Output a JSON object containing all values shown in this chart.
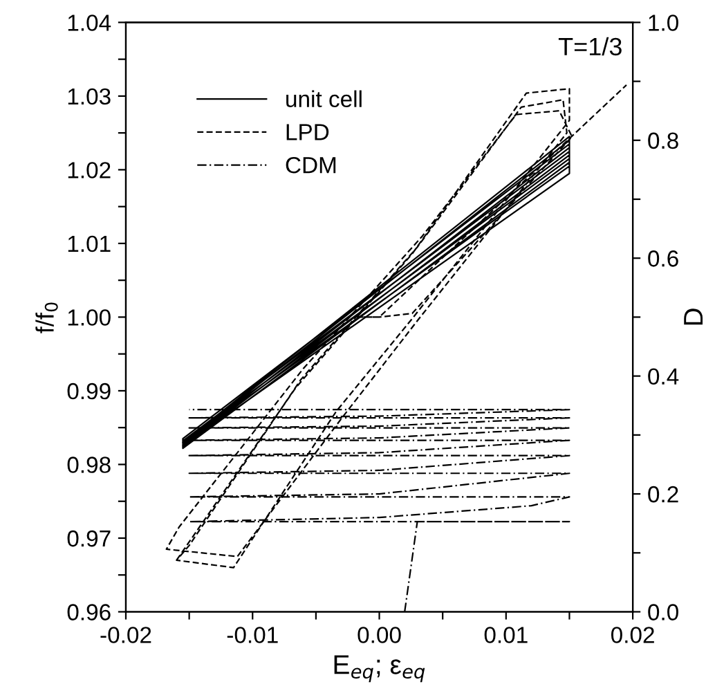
{
  "chart_data": {
    "type": "line",
    "xlabel": "E$_{eq}$; ε$_{eq}$",
    "ylabel": "f/f$_{0}$",
    "y2label": "D",
    "annotations": [
      "T=1/3"
    ],
    "legend": "top left",
    "grid": false,
    "marker": "none",
    "xlim": [
      -0.02,
      0.02
    ],
    "ylim": [
      0.96,
      1.04
    ],
    "y2lim": [
      0.0,
      1.0
    ],
    "xticks": [
      {
        "value": -0.02,
        "label": "-0.02"
      },
      {
        "value": -0.015,
        "label": null
      },
      {
        "value": -0.01,
        "label": "-0.01"
      },
      {
        "value": -0.005,
        "label": null
      },
      {
        "value": 0.0,
        "label": "0.00"
      },
      {
        "value": 0.005,
        "label": null
      },
      {
        "value": 0.01,
        "label": "0.01"
      },
      {
        "value": 0.015,
        "label": null
      },
      {
        "value": 0.02,
        "label": "0.02"
      }
    ],
    "yticks": [
      {
        "value": 0.96,
        "label": "0.96"
      },
      {
        "value": 0.965,
        "label": null
      },
      {
        "value": 0.97,
        "label": "0.97"
      },
      {
        "value": 0.975,
        "label": null
      },
      {
        "value": 0.98,
        "label": "0.98"
      },
      {
        "value": 0.985,
        "label": null
      },
      {
        "value": 0.99,
        "label": "0.99"
      },
      {
        "value": 0.995,
        "label": null
      },
      {
        "value": 1.0,
        "label": "1.00"
      },
      {
        "value": 1.005,
        "label": null
      },
      {
        "value": 1.01,
        "label": "1.01"
      },
      {
        "value": 1.015,
        "label": null
      },
      {
        "value": 1.02,
        "label": "1.02"
      },
      {
        "value": 1.025,
        "label": null
      },
      {
        "value": 1.03,
        "label": "1.03"
      },
      {
        "value": 1.035,
        "label": null
      },
      {
        "value": 1.04,
        "label": "1.04"
      }
    ],
    "y2ticks": [
      {
        "value": 0.0,
        "label": "0.0"
      },
      {
        "value": 0.1,
        "label": null
      },
      {
        "value": 0.2,
        "label": "0.2"
      },
      {
        "value": 0.3,
        "label": null
      },
      {
        "value": 0.4,
        "label": "0.4"
      },
      {
        "value": 0.5,
        "label": null
      },
      {
        "value": 0.6,
        "label": "0.6"
      },
      {
        "value": 0.7,
        "label": null
      },
      {
        "value": 0.8,
        "label": "0.8"
      },
      {
        "value": 0.9,
        "label": null
      },
      {
        "value": 1.0,
        "label": "1.0"
      }
    ],
    "series": [
      {
        "name": "unit cell",
        "color": "#000000",
        "line_style": "solid",
        "x": [
          -0.0155,
          0.015,
          0.015,
          -0.0155,
          -0.0155,
          0.015,
          0.015,
          -0.0155,
          -0.0155,
          0.015,
          0.015,
          -0.0155,
          -0.0155,
          0.015,
          0.015,
          -0.0155,
          -0.0155,
          0.015,
          0.015,
          -0.0155
        ],
        "values": [
          0.9825,
          1.0195,
          1.021,
          0.9822,
          0.9828,
          1.0205,
          1.022,
          0.9824,
          0.983,
          1.0215,
          1.023,
          0.9826,
          0.9832,
          1.0225,
          1.024,
          0.9828,
          0.9835,
          1.0235,
          1.0245,
          0.983
        ]
      },
      {
        "name": "LPD",
        "color": "#000000",
        "line_style": "dashed",
        "x": [
          -0.016,
          -0.0066,
          0.0026,
          0.0116,
          0.015,
          0.015,
          0.0026,
          -0.0034,
          -0.0115,
          -0.016,
          -0.015,
          -0.0062,
          0.003,
          0.0112,
          0.0145,
          0.0148,
          0.003,
          -0.003,
          -0.0112,
          -0.0168,
          -0.0158,
          -0.006,
          0.0034,
          0.0108,
          0.0142,
          0.0152,
          0.0026,
          0.0,
          -0.002,
          0.0,
          0.0195
        ],
        "values": [
          0.967,
          0.9904,
          1.0086,
          1.0304,
          1.031,
          1.0267,
          0.9998,
          0.9872,
          0.966,
          0.967,
          0.969,
          0.9915,
          1.0095,
          1.0285,
          1.0295,
          1.025,
          0.9995,
          0.9862,
          0.9675,
          0.9685,
          0.9715,
          0.993,
          1.011,
          1.0275,
          1.028,
          1.0245,
          1.0005,
          1.0,
          1.0,
          1.0,
          1.0315
        ]
      },
      {
        "name": "CDM",
        "color": "#000000",
        "line_style": "dashdot",
        "axis": "y2",
        "x": [
          0.002,
          0.003,
          0.015,
          -0.015,
          0.0,
          0.012,
          0.015,
          -0.015,
          0.0,
          0.015,
          -0.015,
          0.0,
          0.015,
          -0.015,
          0.0,
          0.015,
          -0.015,
          0.0,
          0.015,
          -0.015,
          0.0,
          0.015,
          -0.015,
          0.0,
          0.015,
          -0.015
        ],
        "values": [
          0.0,
          0.153,
          0.153,
          0.153,
          0.16,
          0.18,
          0.195,
          0.195,
          0.2,
          0.235,
          0.235,
          0.24,
          0.265,
          0.265,
          0.27,
          0.291,
          0.291,
          0.295,
          0.312,
          0.312,
          0.315,
          0.329,
          0.329,
          0.332,
          0.343,
          0.343
        ]
      }
    ]
  }
}
